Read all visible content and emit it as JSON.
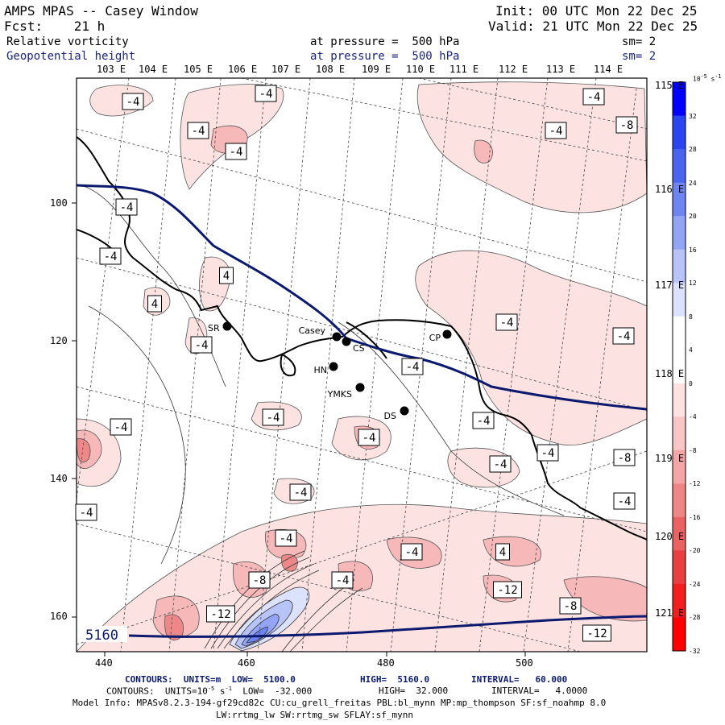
{
  "header": {
    "title": "AMPS MPAS -- Casey Window",
    "fcst": "Fcst:    21 h",
    "init": "Init: 00 UTC Mon 22 Dec 25",
    "valid": "Valid: 21 UTC Mon 22 Dec 25",
    "field1_name": "Relative vorticity",
    "field1_level": "at pressure =  500 hPa",
    "field1_sm": "sm= 2",
    "field2_name": "Geopotential height",
    "field2_level": "at pressure =  500 hPa",
    "field2_sm": "sm= 2"
  },
  "lon_labels_top": [
    "103 E",
    "104 E",
    "105 E",
    "106 E",
    "107 E",
    "108 E",
    "109 E",
    "110 E",
    "111 E",
    "112 E",
    "113 E",
    "114 E"
  ],
  "lon_labels_right": [
    "115 E",
    "116 E",
    "117 E",
    "118 E",
    "119 E",
    "120 E",
    "121 E"
  ],
  "x_ticks": [
    "440",
    "460",
    "480",
    "500"
  ],
  "y_ticks": [
    "100",
    "120",
    "140",
    "160"
  ],
  "stations": [
    {
      "name": "SR"
    },
    {
      "name": "Casey"
    },
    {
      "name": "CS"
    },
    {
      "name": "HN"
    },
    {
      "name": "YMKS"
    },
    {
      "name": "DS"
    },
    {
      "name": "CP"
    }
  ],
  "contour_labels": [
    "-4",
    "-4",
    "-4",
    "-4",
    "-4",
    "-8",
    "-4",
    "-4",
    "-4",
    "4",
    "4",
    "-4",
    "-4",
    "-4",
    "-4",
    "-4",
    "-4",
    "-4",
    "-4",
    "-4",
    "-4",
    "-4",
    "-8",
    "-4",
    "-4",
    "-4",
    "-4",
    "-4",
    "4",
    "-4",
    "-8",
    "-12",
    "-12",
    "-8",
    "-12",
    "-8",
    "-8",
    "-8",
    "-4",
    "-4",
    "-4"
  ],
  "height_label": "5160",
  "colorbar": {
    "unit": "10",
    "unit_exp": "-5",
    "unit_suffix": "s",
    "unit_suffix_exp": "-1",
    "levels": [
      "32",
      "28",
      "24",
      "20",
      "16",
      "12",
      "8",
      "4",
      "0",
      "-4",
      "-8",
      "-12",
      "-16",
      "-20",
      "-24",
      "-28",
      "-32"
    ],
    "colors": [
      "#0000ff",
      "#2a44f0",
      "#4a64f0",
      "#6e84f0",
      "#94a4f4",
      "#b8c4f8",
      "#dce2fc",
      "#ffffff",
      "#ffffff",
      "#fde2e2",
      "#f9c6c6",
      "#f4a6a6",
      "#ee8686",
      "#ea6262",
      "#e64040",
      "#f21f1f",
      "#ff0000"
    ]
  },
  "footer": {
    "line1_a": "CONTOURS:  UNITS=m  LOW=  5100.0",
    "line1_b": "HIGH=  5160.0",
    "line1_c": "INTERVAL=   60.000",
    "line2_a": "CONTOURS:  UNITS=10",
    "line2_exp1": "-5",
    "line2_s": " s",
    "line2_exp2": "-1",
    "line2_b": "  LOW=  -32.000",
    "line2_c": "HIGH=  32.000",
    "line2_d": "INTERVAL=   4.0000",
    "model_info": "Model Info: MPASv8.2.3-194-gf29cd82c CU:cu_grell_freitas PBL:bl_mynn MP:mp_thompson SF:sf_noahmp 8.0",
    "model_info2": "LW:rrtmg_lw SW:rrtmg_sw SFLAY:sf_mynn"
  }
}
